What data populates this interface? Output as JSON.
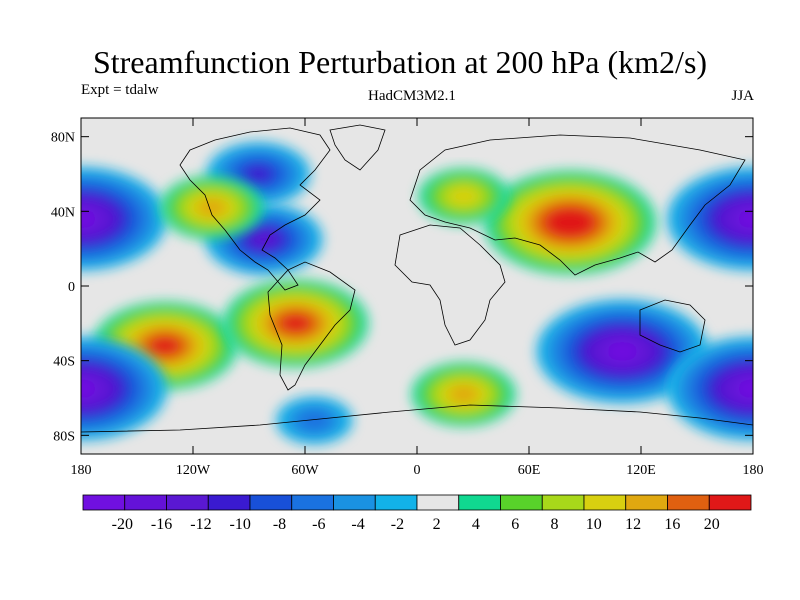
{
  "header": {
    "title": "Streamfunction Perturbation at 200 hPa (km2/s)",
    "left_label": "Expt = tdalw",
    "center_label": "HadCM3M2.1",
    "right_label": "JJA"
  },
  "chart_data": {
    "type": "heatmap",
    "title": "Streamfunction Perturbation at 200 hPa (km2/s)",
    "units": "km2/s",
    "x_range": [
      -180,
      180
    ],
    "y_range": [
      -90,
      90
    ],
    "x_ticks": [
      {
        "value": -180,
        "label": "180"
      },
      {
        "value": -120,
        "label": "120W"
      },
      {
        "value": -60,
        "label": "60W"
      },
      {
        "value": 0,
        "label": "0"
      },
      {
        "value": 60,
        "label": "60E"
      },
      {
        "value": 120,
        "label": "120E"
      },
      {
        "value": 180,
        "label": "180"
      }
    ],
    "y_ticks": [
      {
        "value": 80,
        "label": "80N"
      },
      {
        "value": 40,
        "label": "40N"
      },
      {
        "value": 0,
        "label": "0"
      },
      {
        "value": -40,
        "label": "40S"
      },
      {
        "value": -80,
        "label": "80S"
      }
    ],
    "colorbar": {
      "levels": [
        -20,
        -18,
        -16,
        -14,
        -12,
        -10,
        -8,
        -6,
        -4,
        -2,
        2,
        4,
        6,
        8,
        10,
        12,
        16,
        20
      ],
      "labels": [
        "-20",
        "-16",
        "-12",
        "-10",
        "-8",
        "-6",
        "-4",
        "-2",
        "2",
        "4",
        "6",
        "8",
        "10",
        "12",
        "16",
        "20"
      ],
      "colors": [
        "#7010e0",
        "#6412d8",
        "#5a18d2",
        "#3a1ad0",
        "#1850d8",
        "#1a72e0",
        "#1a92e2",
        "#12b2e8",
        "#e6e6e6",
        "#10d890",
        "#58d22a",
        "#a8d81a",
        "#d8d010",
        "#e0a810",
        "#e06010",
        "#e01818"
      ]
    },
    "features": [
      {
        "name": "negative center North Pacific",
        "lon": -180,
        "lat": 36,
        "value": -20
      },
      {
        "name": "negative center North Pacific (east)",
        "lon": 180,
        "lat": 36,
        "value": -20
      },
      {
        "name": "negative center Caribbean / Gulf",
        "lon": -82,
        "lat": 25,
        "value": -12
      },
      {
        "name": "negative center Canada",
        "lon": -85,
        "lat": 60,
        "value": -10
      },
      {
        "name": "positive center NE Pacific",
        "lon": -110,
        "lat": 42,
        "value": 10
      },
      {
        "name": "positive center Asia (Tibet)",
        "lon": 82,
        "lat": 34,
        "value": 20
      },
      {
        "name": "positive center Europe",
        "lon": 25,
        "lat": 48,
        "value": 8
      },
      {
        "name": "negative center Indian Ocean / Australia",
        "lon": 110,
        "lat": -35,
        "value": -20
      },
      {
        "name": "positive center S Pacific",
        "lon": -135,
        "lat": -32,
        "value": 16
      },
      {
        "name": "positive center S Atlantic off S America",
        "lon": -65,
        "lat": -20,
        "value": 16
      },
      {
        "name": "negative center S Pacific high lat",
        "lon": -180,
        "lat": -55,
        "value": -20
      },
      {
        "name": "negative center S Pacific high lat (east)",
        "lon": 180,
        "lat": -55,
        "value": -20
      },
      {
        "name": "positive center S Atlantic midlat",
        "lon": 25,
        "lat": -58,
        "value": 10
      },
      {
        "name": "negative center South of S America",
        "lon": -55,
        "lat": -72,
        "value": -6
      }
    ]
  }
}
